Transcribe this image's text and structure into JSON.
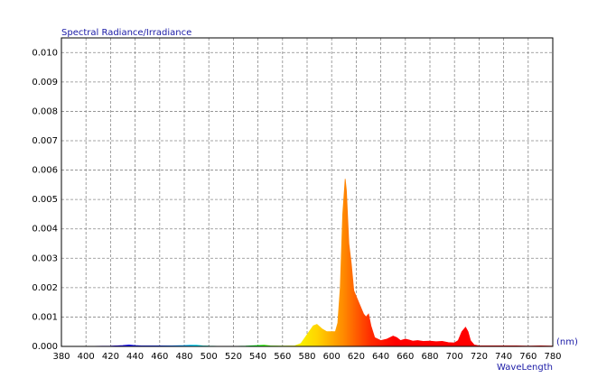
{
  "chart_data": {
    "type": "area",
    "title": "Spectral Radiance/Irradiance",
    "x_unit": "(nm)",
    "x_label": "WaveLength",
    "colormap": "spectral",
    "grid": true,
    "x": [
      380,
      400,
      420,
      425,
      430,
      435,
      440,
      445,
      450,
      460,
      470,
      480,
      485,
      490,
      495,
      500,
      510,
      520,
      530,
      540,
      545,
      550,
      560,
      570,
      575,
      580,
      585,
      588,
      592,
      596,
      600,
      603,
      605,
      607,
      609,
      611,
      612,
      614,
      616,
      618,
      620,
      622,
      624,
      626,
      628,
      630,
      632,
      635,
      640,
      645,
      650,
      653,
      656,
      660,
      663,
      666,
      670,
      675,
      680,
      685,
      690,
      695,
      700,
      703,
      706,
      709,
      711,
      713,
      716,
      720,
      730,
      740,
      750,
      760,
      770,
      780
    ],
    "values": [
      0,
      0,
      1e-05,
      2e-05,
      3e-05,
      5e-05,
      3e-05,
      2e-05,
      2e-05,
      2e-05,
      2e-05,
      3e-05,
      4e-05,
      4e-05,
      2e-05,
      1e-05,
      0,
      0,
      1e-05,
      3e-05,
      4e-05,
      2e-05,
      1e-05,
      2e-05,
      0.0001,
      0.0004,
      0.0007,
      0.00075,
      0.0006,
      0.0005,
      0.0005,
      0.0005,
      0.0008,
      0.002,
      0.0045,
      0.0057,
      0.0053,
      0.0035,
      0.0028,
      0.0019,
      0.0017,
      0.0015,
      0.0013,
      0.0011,
      0.001,
      0.0011,
      0.0007,
      0.0003,
      0.0002,
      0.00025,
      0.00035,
      0.0003,
      0.0002,
      0.00025,
      0.00022,
      0.00018,
      0.0002,
      0.00017,
      0.00018,
      0.00016,
      0.00017,
      0.00013,
      0.00012,
      0.0002,
      0.0005,
      0.00065,
      0.0005,
      0.0002,
      5e-05,
      2e-05,
      2e-05,
      2e-05,
      2e-05,
      1e-05,
      2e-05,
      1e-05
    ],
    "xlim": [
      380,
      780
    ],
    "xticks": [
      380,
      400,
      420,
      440,
      460,
      480,
      500,
      520,
      540,
      560,
      580,
      600,
      620,
      640,
      660,
      680,
      700,
      720,
      740,
      760,
      780
    ],
    "ylim": [
      0,
      0.0105
    ],
    "yticks": [
      {
        "value": 0,
        "label": "0.000"
      },
      {
        "value": 0.001,
        "label": "0.001"
      },
      {
        "value": 0.002,
        "label": "0.002"
      },
      {
        "value": 0.003,
        "label": "0.003"
      },
      {
        "value": 0.004,
        "label": "0.004"
      },
      {
        "value": 0.005,
        "label": "0.005"
      },
      {
        "value": 0.006,
        "label": "0.006"
      },
      {
        "value": 0.007,
        "label": "0.007"
      },
      {
        "value": 0.008,
        "label": "0.008"
      },
      {
        "value": 0.009,
        "label": "0.009"
      },
      {
        "value": 0.01,
        "label": "0.010"
      }
    ]
  }
}
